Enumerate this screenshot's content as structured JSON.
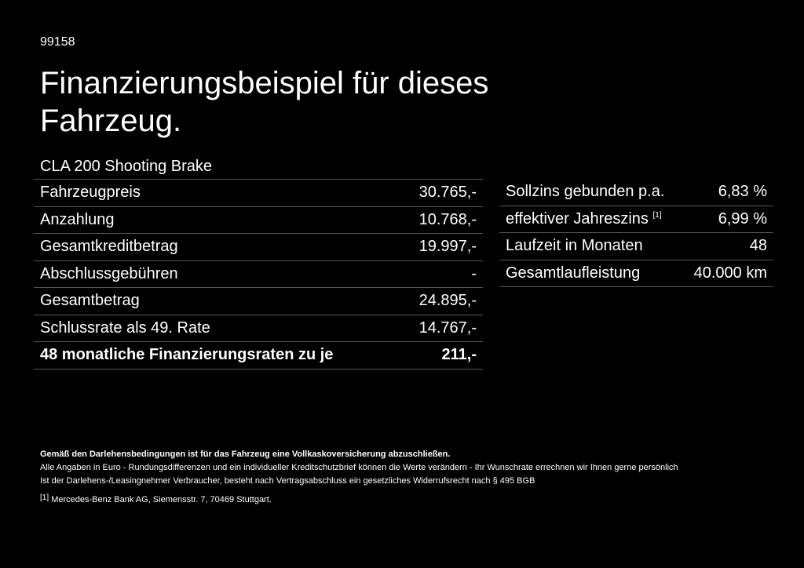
{
  "id": "99158",
  "title": "Finanzierungsbeispiel für dieses Fahrzeug.",
  "model": "CLA 200 Shooting Brake",
  "left_rows": [
    {
      "label": "Fahrzeugpreis",
      "value": "30.765,-"
    },
    {
      "label": "Anzahlung",
      "value": "10.768,-"
    },
    {
      "label": "Gesamtkreditbetrag",
      "value": "19.997,-"
    },
    {
      "label": "Abschlussgebühren",
      "value": "-"
    },
    {
      "label": "Gesamtbetrag",
      "value": "24.895,-"
    },
    {
      "label": "Schlussrate als 49. Rate",
      "value": "14.767,-"
    },
    {
      "label": "48 monatliche Finanzierungsraten zu je",
      "value": "211,-"
    }
  ],
  "right_rows": [
    {
      "label": "Sollzins gebunden p.a.",
      "value": "6,83 %"
    },
    {
      "label": "effektiver Jahreszins",
      "sup": "[1]",
      "value": "6,99 %"
    },
    {
      "label": "Laufzeit in Monaten",
      "value": "48"
    },
    {
      "label": "Gesamtlaufleistung",
      "value": "40.000 km"
    }
  ],
  "notes": {
    "bold": "Gemäß den Darlehensbedingungen ist für das Fahrzeug eine Vollkaskoversicherung abzuschließen.",
    "line1": "Alle Angaben in Euro - Rundungsdifferenzen und ein individueller Kreditschutzbrief können die Werte verändern - Ihr Wunschrate errechnen wir Ihnen gerne persönlich",
    "line2": "Ist der Darlehens-/Leasingnehmer Verbraucher, besteht nach Vertragsabschluss ein gesetzliches Widerrufsrecht nach § 495 BGB",
    "footnote_mark": "[1]",
    "footnote": "Mercedes-Benz Bank AG, Siemensstr. 7, 70469 Stuttgart."
  }
}
